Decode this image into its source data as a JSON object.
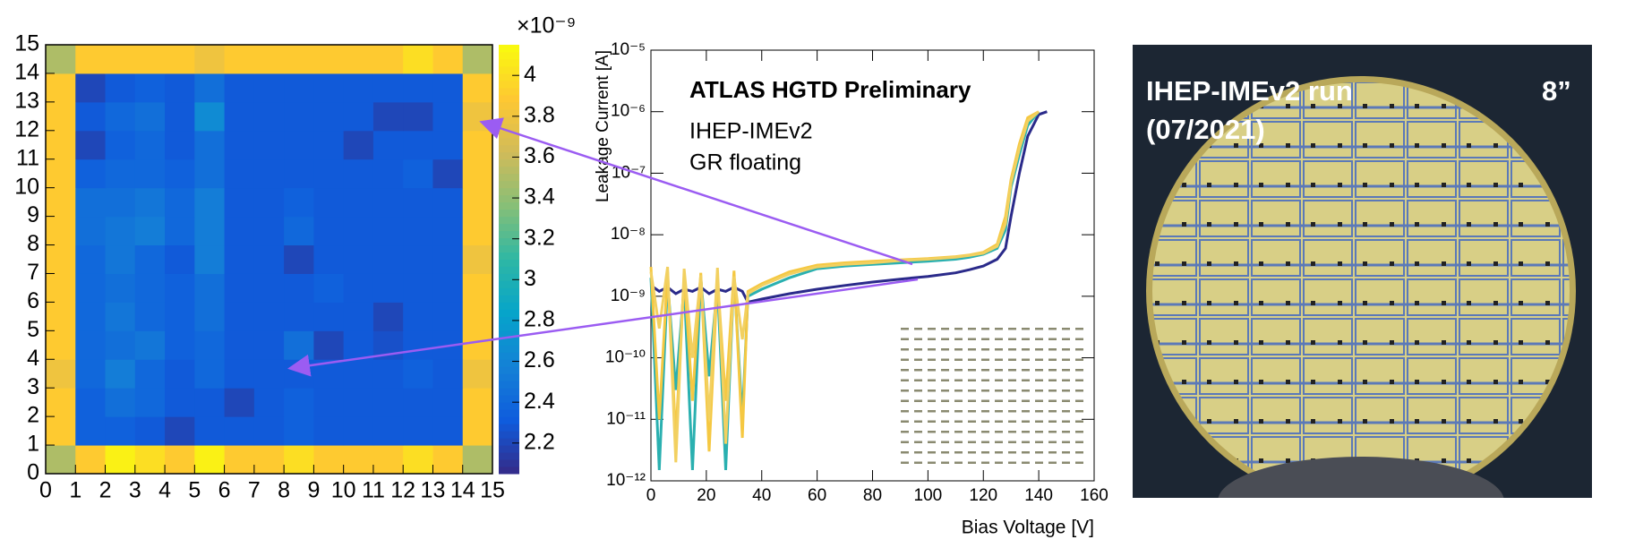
{
  "chart_data": [
    {
      "type": "heatmap",
      "xlim": [
        0,
        15
      ],
      "xticks": [
        0,
        1,
        2,
        3,
        4,
        5,
        6,
        7,
        8,
        9,
        10,
        11,
        12,
        13,
        14,
        15
      ],
      "ylim": [
        0,
        15
      ],
      "yticks": [
        0,
        1,
        2,
        3,
        4,
        5,
        6,
        7,
        8,
        9,
        10,
        11,
        12,
        13,
        14,
        15
      ],
      "zlim": [
        2.05,
        4.15
      ],
      "zticks": [
        2.2,
        2.4,
        2.6,
        2.8,
        3,
        3.2,
        3.4,
        3.6,
        3.8,
        4
      ],
      "zmultiplier": "×10⁻⁹",
      "colorscale": [
        "#352a87",
        "#0f5cdd",
        "#1481d6",
        "#06a4ca",
        "#2eb7a4",
        "#87bf77",
        "#d1bb59",
        "#fec832",
        "#f9fb0e"
      ],
      "z": [
        [
          3.5,
          3.9,
          4.1,
          4.0,
          3.9,
          4.1,
          3.9,
          3.9,
          4.0,
          3.9,
          3.9,
          3.9,
          4.0,
          3.9,
          3.5
        ],
        [
          3.9,
          2.35,
          2.35,
          2.3,
          2.2,
          2.3,
          2.3,
          2.3,
          2.35,
          2.3,
          2.3,
          2.3,
          2.3,
          2.3,
          3.9
        ],
        [
          3.9,
          2.35,
          2.45,
          2.4,
          2.3,
          2.3,
          2.2,
          2.3,
          2.35,
          2.3,
          2.3,
          2.3,
          2.3,
          2.3,
          3.9
        ],
        [
          3.8,
          2.4,
          2.55,
          2.4,
          2.3,
          2.4,
          2.3,
          2.3,
          2.3,
          2.3,
          2.3,
          2.3,
          2.35,
          2.3,
          3.8
        ],
        [
          3.9,
          2.4,
          2.45,
          2.5,
          2.35,
          2.4,
          2.3,
          2.3,
          2.45,
          2.2,
          2.3,
          2.25,
          2.3,
          2.3,
          3.9
        ],
        [
          3.9,
          2.4,
          2.5,
          2.4,
          2.35,
          2.45,
          2.3,
          2.3,
          2.3,
          2.3,
          2.3,
          2.2,
          2.3,
          2.3,
          3.9
        ],
        [
          3.9,
          2.4,
          2.45,
          2.4,
          2.35,
          2.45,
          2.3,
          2.3,
          2.3,
          2.35,
          2.3,
          2.3,
          2.3,
          2.3,
          3.9
        ],
        [
          3.9,
          2.4,
          2.5,
          2.4,
          2.3,
          2.55,
          2.3,
          2.3,
          2.2,
          2.3,
          2.3,
          2.3,
          2.3,
          2.3,
          3.8
        ],
        [
          3.9,
          2.45,
          2.5,
          2.55,
          2.4,
          2.55,
          2.3,
          2.3,
          2.4,
          2.3,
          2.3,
          2.3,
          2.3,
          2.3,
          3.9
        ],
        [
          3.9,
          2.45,
          2.45,
          2.5,
          2.4,
          2.55,
          2.3,
          2.3,
          2.35,
          2.3,
          2.3,
          2.3,
          2.3,
          2.3,
          3.9
        ],
        [
          3.9,
          2.35,
          2.4,
          2.4,
          2.35,
          2.45,
          2.3,
          2.3,
          2.3,
          2.3,
          2.3,
          2.3,
          2.35,
          2.2,
          3.9
        ],
        [
          3.9,
          2.2,
          2.35,
          2.4,
          2.3,
          2.45,
          2.3,
          2.3,
          2.3,
          2.3,
          2.2,
          2.3,
          2.3,
          2.3,
          3.9
        ],
        [
          3.9,
          2.3,
          2.4,
          2.45,
          2.3,
          2.65,
          2.3,
          2.3,
          2.3,
          2.3,
          2.3,
          2.2,
          2.2,
          2.3,
          3.8
        ],
        [
          3.9,
          2.2,
          2.3,
          2.35,
          2.3,
          2.45,
          2.3,
          2.3,
          2.3,
          2.3,
          2.3,
          2.3,
          2.3,
          2.3,
          3.9
        ],
        [
          3.5,
          3.9,
          3.9,
          3.9,
          3.9,
          3.8,
          3.9,
          3.9,
          3.9,
          3.9,
          3.9,
          3.9,
          4.0,
          3.9,
          3.5
        ]
      ]
    },
    {
      "type": "line",
      "annotations": [
        "ATLAS HGTD Preliminary",
        "IHEP-IMEv2",
        "GR floating"
      ],
      "xlabel": "Bias Voltage [V]",
      "ylabel": "Leakage Current [A]",
      "log_y": true,
      "xlim": [
        0,
        160
      ],
      "xticks": [
        0,
        20,
        40,
        60,
        80,
        100,
        120,
        140,
        160
      ],
      "ylim": [
        1e-12,
        1e-05
      ],
      "yticks": [
        {
          "value": 1e-12,
          "label": "10⁻¹²"
        },
        {
          "value": 1e-11,
          "label": "10⁻¹¹"
        },
        {
          "value": 1e-10,
          "label": "10⁻¹⁰"
        },
        {
          "value": 1e-09,
          "label": "10⁻⁹"
        },
        {
          "value": 1e-08,
          "label": "10⁻⁸"
        },
        {
          "value": 1e-07,
          "label": "10⁻⁷"
        },
        {
          "value": 1e-06,
          "label": "10⁻⁶"
        },
        {
          "value": 1e-05,
          "label": "10⁻⁵"
        }
      ],
      "x": [
        0,
        3,
        6,
        9,
        12,
        15,
        18,
        21,
        24,
        27,
        30,
        33,
        35,
        40,
        50,
        60,
        70,
        80,
        90,
        100,
        110,
        115,
        120,
        125,
        128,
        130,
        133,
        136,
        140,
        143
      ],
      "series": [
        {
          "color": "#2a2a8a",
          "values": [
            1.5e-09,
            1.2e-09,
            1.4e-09,
            1.1e-09,
            1.3e-09,
            1.2e-09,
            1.4e-09,
            1.1e-09,
            1.3e-09,
            1.2e-09,
            1.4e-09,
            1.2e-09,
            8e-10,
            9e-10,
            1.1e-09,
            1.3e-09,
            1.5e-09,
            1.7e-09,
            1.9e-09,
            2.1e-09,
            2.4e-09,
            2.7e-09,
            3.1e-09,
            4e-09,
            6e-09,
            2e-08,
            1e-07,
            4e-07,
            9e-07,
            1e-06
          ]
        },
        {
          "color": "#2ab0b0",
          "values": [
            2e-09,
            1.5e-12,
            1.8e-09,
            3e-11,
            1.5e-09,
            1.5e-12,
            2e-09,
            5e-11,
            1.6e-09,
            1.5e-12,
            2.2e-09,
            1e-11,
            1e-09,
            1.3e-09,
            2e-09,
            2.8e-09,
            3.1e-09,
            3.3e-09,
            3.5e-09,
            3.7e-09,
            4e-09,
            4.3e-09,
            4.8e-09,
            6e-09,
            1.2e-08,
            6e-08,
            2e-07,
            6e-07,
            1e-06,
            null
          ]
        },
        {
          "color": "#f5c842",
          "values": [
            3e-09,
            1e-11,
            2.5e-09,
            5e-12,
            2.2e-09,
            2e-11,
            2.4e-09,
            3e-12,
            2e-09,
            2e-11,
            2.6e-09,
            5e-12,
            1.2e-09,
            1.6e-09,
            2.5e-09,
            3.2e-09,
            3.5e-09,
            3.7e-09,
            3.9e-09,
            4.1e-09,
            4.4e-09,
            4.7e-09,
            5.2e-09,
            7e-09,
            2e-08,
            8e-08,
            3e-07,
            8e-07,
            1e-06,
            null
          ]
        },
        {
          "color": "#f2d060",
          "values": [
            2.5e-09,
            3e-10,
            3e-09,
            2e-12,
            2.8e-09,
            1e-10,
            2.2e-09,
            1e-11,
            2.9e-09,
            4e-12,
            2.1e-09,
            2e-10,
            1.1e-09,
            1.5e-09,
            2.3e-09,
            3e-09,
            3.3e-09,
            3.5e-09,
            3.8e-09,
            4e-09,
            4.3e-09,
            4.6e-09,
            5e-09,
            6.5e-09,
            1.5e-08,
            7e-08,
            2.5e-07,
            7e-07,
            1e-06,
            null
          ]
        }
      ]
    }
  ],
  "photo": {
    "caption_lines": [
      "IHEP-IMEv2 run",
      "(07/2021)"
    ],
    "size_label": "8”"
  }
}
